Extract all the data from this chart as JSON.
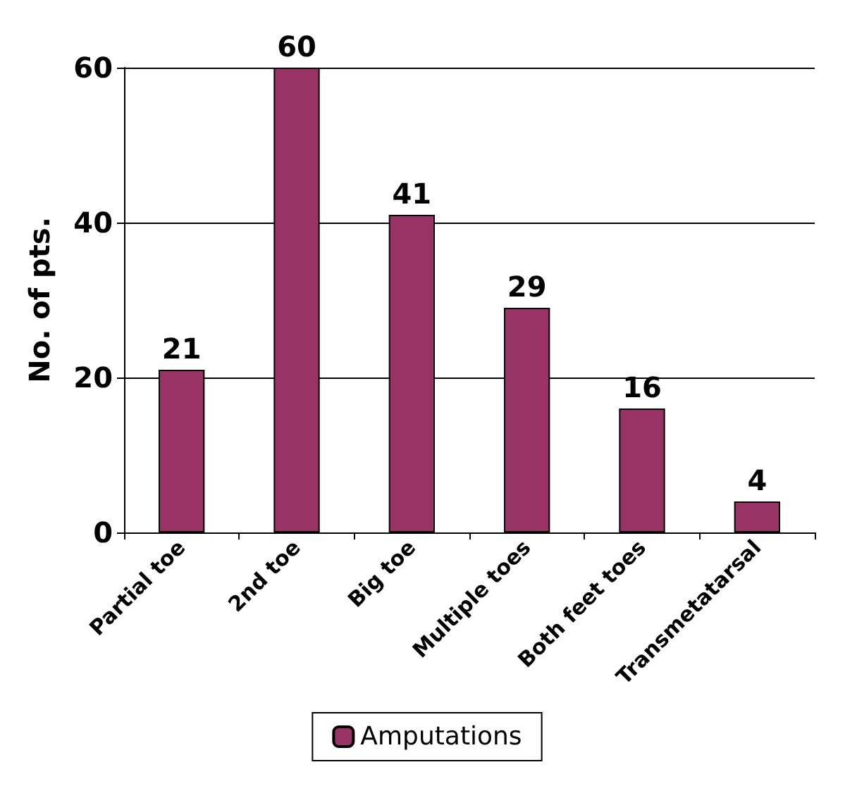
{
  "chart_data": {
    "type": "bar",
    "ylabel": "No. of pts.",
    "categories": [
      "Partial toe",
      "2nd toe",
      "Big toe",
      "Multiple toes",
      "Both feet toes",
      "Transmetatarsal"
    ],
    "series": [
      {
        "name": "Amputations",
        "color": "#993366",
        "values": [
          21,
          60,
          41,
          29,
          16,
          4
        ]
      }
    ],
    "ylim": [
      0,
      60
    ],
    "yticks": [
      0,
      20,
      40,
      60
    ],
    "grid": "y",
    "legend": "bottom",
    "data_labels": true
  }
}
